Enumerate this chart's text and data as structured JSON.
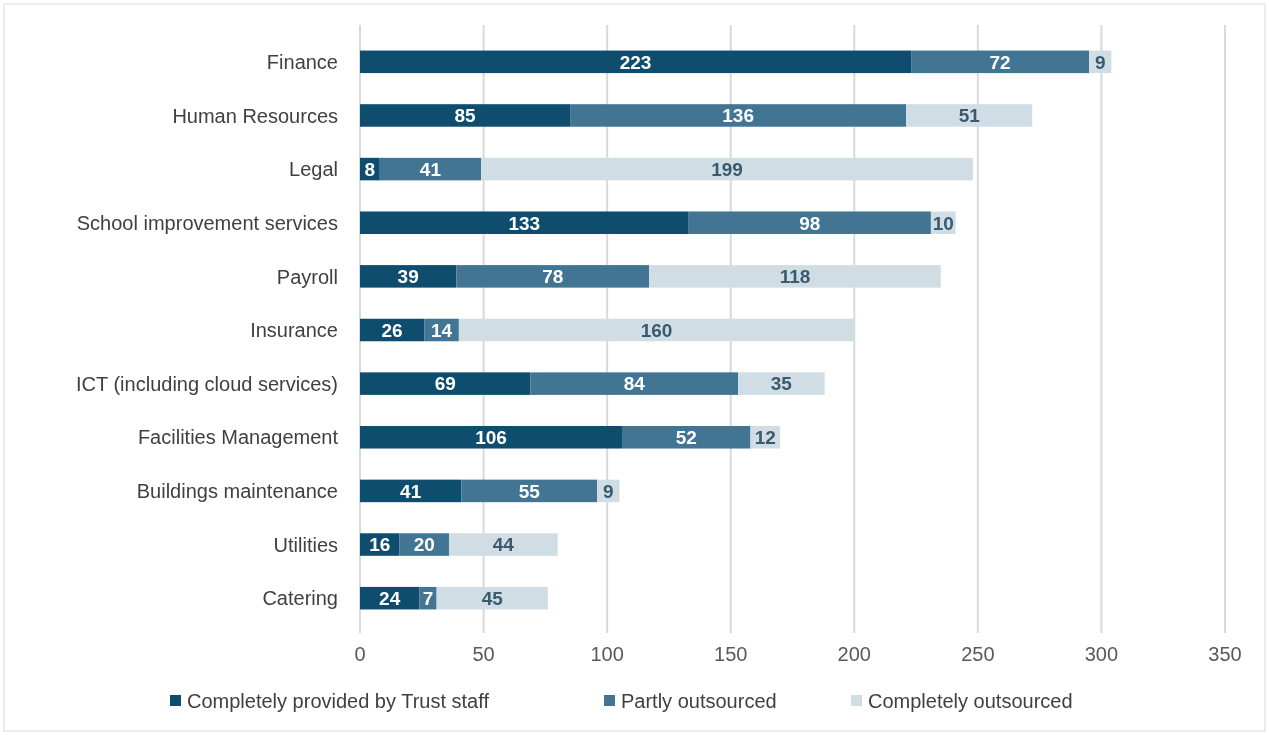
{
  "chart_data": {
    "type": "bar",
    "orientation": "horizontal",
    "stacked": true,
    "categories": [
      "Finance",
      "Human Resources",
      "Legal",
      "School improvement services",
      "Payroll",
      "Insurance",
      "ICT (including cloud services)",
      "Facilities Management",
      "Buildings maintenance",
      "Utilities",
      "Catering"
    ],
    "series": [
      {
        "name": "Completely provided by Trust staff",
        "color": "#0f4d6f",
        "values": [
          223,
          85,
          8,
          133,
          39,
          26,
          69,
          106,
          41,
          16,
          24
        ]
      },
      {
        "name": "Partly outsourced",
        "color": "#427494",
        "values": [
          72,
          136,
          41,
          98,
          78,
          14,
          84,
          52,
          55,
          20,
          7
        ]
      },
      {
        "name": "Completely outsourced",
        "color": "#d0dde5",
        "values": [
          9,
          51,
          199,
          10,
          118,
          160,
          35,
          12,
          9,
          44,
          45
        ]
      }
    ],
    "xlim": [
      0,
      350
    ],
    "xticks": [
      0,
      50,
      100,
      150,
      200,
      250,
      300,
      350
    ],
    "grid": "x",
    "legend": "bottom",
    "data_labels": true
  }
}
